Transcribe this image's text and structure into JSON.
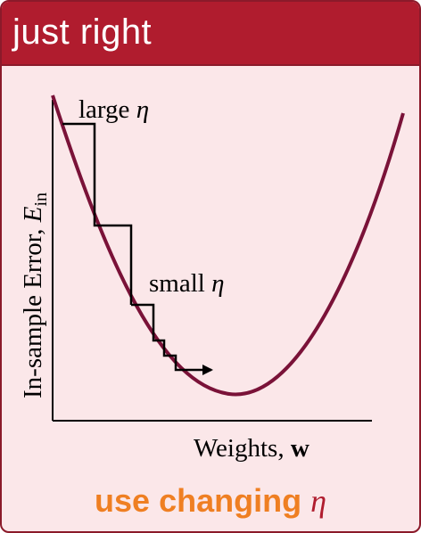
{
  "header": {
    "title": "just right"
  },
  "diagram": {
    "y_axis_label": "In-sample Error, ",
    "y_axis_symbol": "E",
    "y_axis_subscript": "in",
    "x_axis_label": "Weights, ",
    "x_axis_symbol": "w",
    "annotation_large": "large ",
    "annotation_small": "small ",
    "eta_symbol": "η",
    "curve_color": "#7a1238",
    "step_color": "#000000"
  },
  "footer": {
    "text": "use changing ",
    "symbol": "η"
  },
  "colors": {
    "header_bg": "#b01c2e",
    "panel_bg": "#fbe7e9",
    "footer_text": "#ef7f22",
    "footer_symbol": "#b01c2e"
  }
}
